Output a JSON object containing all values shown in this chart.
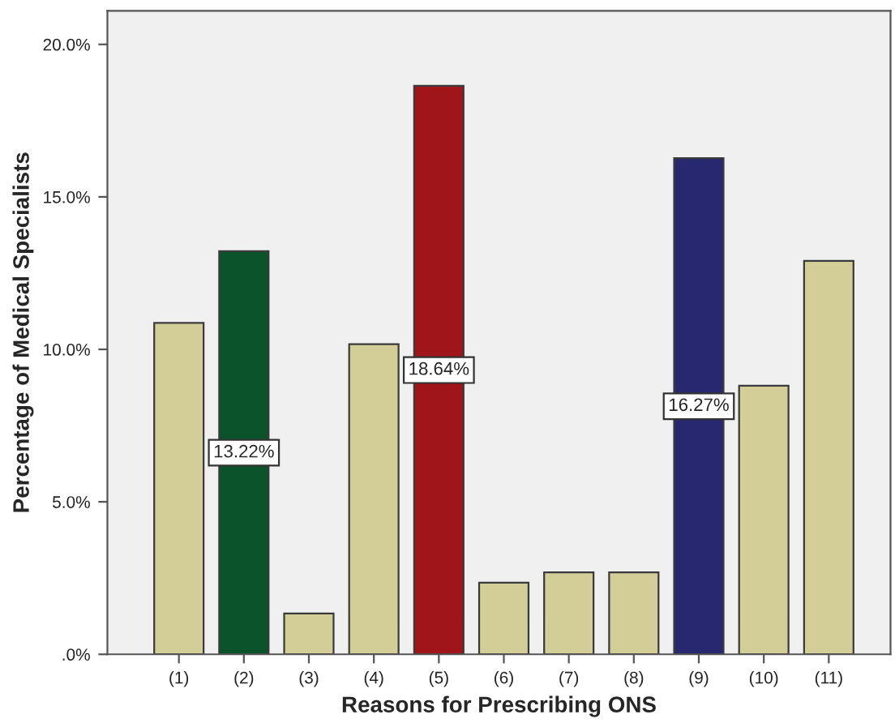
{
  "chart_data": {
    "type": "bar",
    "xlabel": "Reasons for Prescribing ONS",
    "ylabel": "Percentage of Medical Specialists",
    "categories": [
      "(1)",
      "(2)",
      "(3)",
      "(4)",
      "(5)",
      "(6)",
      "(7)",
      "(8)",
      "(9)",
      "(10)",
      "(11)"
    ],
    "values": [
      10.87,
      13.22,
      1.34,
      10.17,
      18.64,
      2.35,
      2.69,
      2.69,
      16.27,
      8.81,
      12.9
    ],
    "colors": [
      "#d3ce97",
      "#0b532a",
      "#d3ce97",
      "#d3ce97",
      "#a0151a",
      "#d3ce97",
      "#d3ce97",
      "#d3ce97",
      "#282870",
      "#d3ce97",
      "#d3ce97"
    ],
    "value_labels": [
      null,
      "13.22%",
      null,
      null,
      "18.64%",
      null,
      null,
      null,
      "16.27%",
      null,
      null
    ],
    "ylim": [
      0,
      21.1
    ],
    "yticks": [
      {
        "value": 0,
        "label": ".0%"
      },
      {
        "value": 5,
        "label": "5.0%"
      },
      {
        "value": 10,
        "label": "10.0%"
      },
      {
        "value": 15,
        "label": "15.0%"
      },
      {
        "value": 20,
        "label": "20.0%"
      }
    ],
    "grid": false,
    "legend": false
  }
}
